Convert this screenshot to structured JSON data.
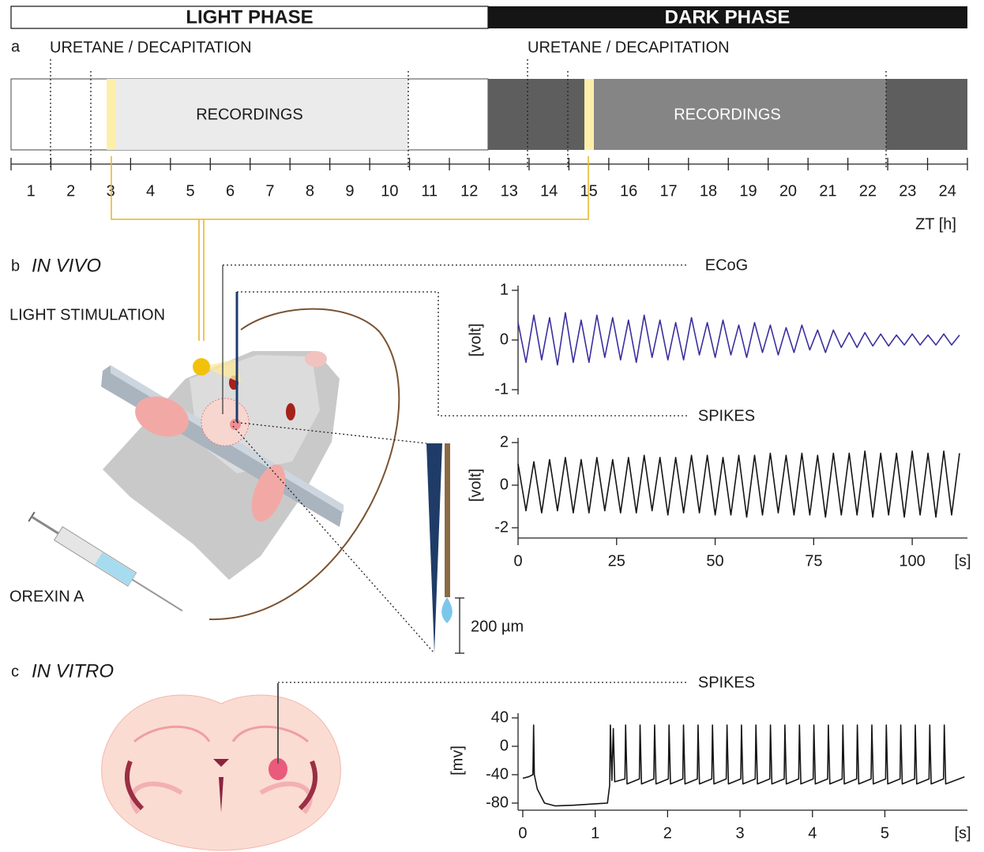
{
  "phases": {
    "light": "LIGHT PHASE",
    "dark": "DARK PHASE"
  },
  "panel_a": {
    "label": "a",
    "events": [
      "URETANE / DECAPITATION",
      "URETANE / DECAPITATION"
    ],
    "recordings": [
      "RECORDINGS",
      "RECORDINGS"
    ],
    "zt_ticks": [
      1,
      2,
      3,
      4,
      5,
      6,
      7,
      8,
      9,
      10,
      11,
      12,
      13,
      14,
      15,
      16,
      17,
      18,
      19,
      20,
      21,
      22,
      23,
      24
    ],
    "zt_label": "ZT [h]"
  },
  "panel_b": {
    "label": "b",
    "title": "IN VIVO",
    "light": "LIGHT STIMULATION",
    "drug": "OREXIN A",
    "scale": "200 µm"
  },
  "panel_c": {
    "label": "c",
    "title": "IN VITRO"
  },
  "chart_data": [
    {
      "type": "line",
      "title": "ECoG",
      "ylabel": "[volt]",
      "x": [
        0,
        2,
        4,
        6,
        8,
        10,
        12,
        14,
        16,
        18,
        20,
        22,
        24,
        26,
        28,
        30,
        32,
        34,
        36,
        38,
        40,
        42,
        44,
        46,
        48,
        50,
        52,
        54,
        56,
        58,
        60,
        62,
        64,
        66,
        68,
        70,
        72,
        74,
        76,
        78,
        80,
        82,
        84,
        86,
        88,
        90,
        92,
        94,
        96,
        98,
        100,
        102,
        104,
        106,
        108,
        110,
        112
      ],
      "series": [
        {
          "color": "#3b2f9e",
          "values": [
            0.35,
            -0.45,
            0.5,
            -0.4,
            0.45,
            -0.5,
            0.55,
            -0.45,
            0.4,
            -0.45,
            0.5,
            -0.35,
            0.45,
            -0.4,
            0.4,
            -0.45,
            0.5,
            -0.35,
            0.4,
            -0.4,
            0.35,
            -0.4,
            0.45,
            -0.3,
            0.35,
            -0.35,
            0.4,
            -0.3,
            0.3,
            -0.35,
            0.35,
            -0.25,
            0.3,
            -0.3,
            0.25,
            -0.25,
            0.3,
            -0.2,
            0.2,
            -0.25,
            0.2,
            -0.15,
            0.15,
            -0.15,
            0.15,
            -0.12,
            0.12,
            -0.12,
            0.1,
            -0.1,
            0.12,
            -0.1,
            0.1,
            -0.1,
            0.12,
            -0.1,
            0.1
          ]
        }
      ],
      "xlim": [
        0,
        114
      ],
      "ylim": [
        -1,
        1
      ],
      "yticks": [
        -1,
        0,
        1
      ]
    },
    {
      "type": "line",
      "title": "SPIKES",
      "ylabel": "[volt]",
      "xlabel": "[s]",
      "x": [
        0,
        2,
        4,
        6,
        8,
        10,
        12,
        14,
        16,
        18,
        20,
        22,
        24,
        26,
        28,
        30,
        32,
        34,
        36,
        38,
        40,
        42,
        44,
        46,
        48,
        50,
        52,
        54,
        56,
        58,
        60,
        62,
        64,
        66,
        68,
        70,
        72,
        74,
        76,
        78,
        80,
        82,
        84,
        86,
        88,
        90,
        92,
        94,
        96,
        98,
        100,
        102,
        104,
        106,
        108,
        110,
        112
      ],
      "series": [
        {
          "color": "#151515",
          "values": [
            1.0,
            -1.2,
            1.1,
            -1.3,
            1.2,
            -1.2,
            1.3,
            -1.3,
            1.2,
            -1.3,
            1.3,
            -1.2,
            1.2,
            -1.3,
            1.3,
            -1.3,
            1.4,
            -1.2,
            1.3,
            -1.4,
            1.3,
            -1.3,
            1.4,
            -1.3,
            1.4,
            -1.4,
            1.3,
            -1.4,
            1.4,
            -1.5,
            1.4,
            -1.4,
            1.5,
            -1.3,
            1.4,
            -1.4,
            1.5,
            -1.4,
            1.4,
            -1.5,
            1.5,
            -1.4,
            1.5,
            -1.4,
            1.6,
            -1.5,
            1.5,
            -1.4,
            1.5,
            -1.5,
            1.6,
            -1.4,
            1.5,
            -1.5,
            1.6,
            -1.4,
            1.5
          ]
        }
      ],
      "xlim": [
        0,
        114
      ],
      "xticks": [
        0,
        25,
        50,
        75,
        100
      ],
      "ylim": [
        -2,
        2
      ],
      "yticks": [
        -2,
        0,
        2
      ]
    },
    {
      "type": "line",
      "title": "SPIKES",
      "ylabel": "[mv]",
      "xlabel": "[s]",
      "x": [
        0,
        0.08,
        0.14,
        0.15,
        0.16,
        0.2,
        0.3,
        0.45,
        0.7,
        1.0,
        1.17,
        1.2,
        1.21,
        1.23,
        1.25,
        1.27,
        1.41,
        1.42,
        1.44,
        1.61,
        1.62,
        1.64,
        1.81,
        1.82,
        1.84,
        2.01,
        2.02,
        2.04,
        2.21,
        2.22,
        2.24,
        2.41,
        2.42,
        2.44,
        2.61,
        2.62,
        2.64,
        2.81,
        2.82,
        2.84,
        3.01,
        3.02,
        3.04,
        3.21,
        3.22,
        3.24,
        3.41,
        3.42,
        3.44,
        3.61,
        3.62,
        3.64,
        3.81,
        3.82,
        3.84,
        4.01,
        4.02,
        4.04,
        4.21,
        4.22,
        4.24,
        4.41,
        4.42,
        4.44,
        4.61,
        4.62,
        4.64,
        4.81,
        4.82,
        4.84,
        5.01,
        5.02,
        5.04,
        5.21,
        5.22,
        5.24,
        5.41,
        5.42,
        5.44,
        5.61,
        5.62,
        5.64,
        5.81,
        5.82,
        5.84,
        6.1
      ],
      "series": [
        {
          "color": "#151515",
          "values": [
            -45,
            -43,
            -40,
            30,
            -40,
            -60,
            -80,
            -84,
            -83,
            -81,
            -80,
            -55,
            30,
            -48,
            25,
            -50,
            -46,
            30,
            -53,
            -46,
            30,
            -53,
            -46,
            30,
            -53,
            -46,
            30,
            -53,
            -46,
            30,
            -53,
            -46,
            30,
            -53,
            -46,
            30,
            -53,
            -46,
            30,
            -53,
            -46,
            30,
            -53,
            -46,
            30,
            -53,
            -46,
            30,
            -53,
            -46,
            30,
            -53,
            -46,
            30,
            -53,
            -46,
            30,
            -53,
            -46,
            30,
            -53,
            -46,
            30,
            -53,
            -46,
            30,
            -53,
            -46,
            30,
            -53,
            -46,
            30,
            -53,
            -46,
            30,
            -53,
            -46,
            30,
            -53,
            -46,
            30,
            -53,
            -46,
            30,
            -53,
            -43
          ]
        }
      ],
      "xlim": [
        -0.065,
        6.14
      ],
      "xticks": [
        0,
        1,
        2,
        3,
        4,
        5
      ],
      "ylim": [
        -80,
        40
      ],
      "yticks": [
        -80,
        -40,
        0,
        40
      ]
    }
  ]
}
